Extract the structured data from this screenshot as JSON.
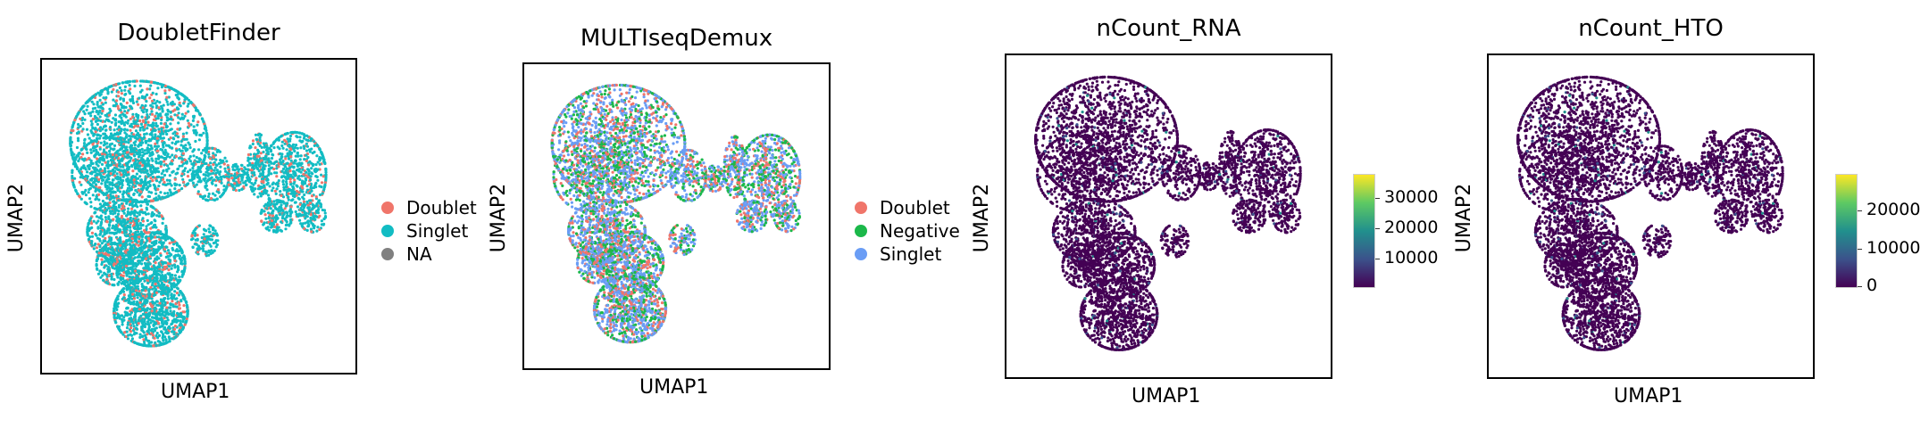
{
  "panels": [
    {
      "title": "DoubletFinder",
      "xlabel": "UMAP1",
      "ylabel": "UMAP2",
      "legend": [
        {
          "label": "Doublet",
          "color": "#f0756a"
        },
        {
          "label": "Singlet",
          "color": "#12bcc3"
        },
        {
          "label": "NA",
          "color": "#808080"
        }
      ]
    },
    {
      "title": "MULTIseqDemux",
      "xlabel": "UMAP1",
      "ylabel": "UMAP2",
      "legend": [
        {
          "label": "Doublet",
          "color": "#f0756a"
        },
        {
          "label": "Negative",
          "color": "#1bb84a"
        },
        {
          "label": "Singlet",
          "color": "#6a9df5"
        }
      ]
    },
    {
      "title": "nCount_RNA",
      "xlabel": "UMAP1",
      "ylabel": "UMAP2",
      "colorbar": {
        "ticks": [
          "30000",
          "20000",
          "10000"
        ]
      }
    },
    {
      "title": "nCount_HTO",
      "xlabel": "UMAP1",
      "ylabel": "UMAP2",
      "colorbar": {
        "ticks": [
          "20000",
          "10000",
          "0"
        ]
      }
    }
  ],
  "chart_data": [
    {
      "type": "scatter",
      "title": "DoubletFinder",
      "xlabel": "UMAP1",
      "ylabel": "UMAP2",
      "color_by": "categorical",
      "categories": [
        "Doublet",
        "Singlet",
        "NA"
      ],
      "category_colors": [
        "#f0756a",
        "#12bcc3",
        "#808080"
      ],
      "legend_position": "right",
      "grid": false
    },
    {
      "type": "scatter",
      "title": "MULTIseqDemux",
      "xlabel": "UMAP1",
      "ylabel": "UMAP2",
      "color_by": "categorical",
      "categories": [
        "Doublet",
        "Negative",
        "Singlet"
      ],
      "category_colors": [
        "#f0756a",
        "#1bb84a",
        "#6a9df5"
      ],
      "legend_position": "right",
      "grid": false
    },
    {
      "type": "scatter",
      "title": "nCount_RNA",
      "xlabel": "UMAP1",
      "ylabel": "UMAP2",
      "color_by": "continuous",
      "colormap": "viridis",
      "colorbar_ticks": [
        30000,
        20000,
        10000
      ],
      "colorbar_range": [
        0,
        38000
      ],
      "grid": false
    },
    {
      "type": "scatter",
      "title": "nCount_HTO",
      "xlabel": "UMAP1",
      "ylabel": "UMAP2",
      "color_by": "continuous",
      "colormap": "viridis",
      "colorbar_ticks": [
        20000,
        10000,
        0
      ],
      "colorbar_range": [
        0,
        28000
      ],
      "grid": false
    }
  ]
}
